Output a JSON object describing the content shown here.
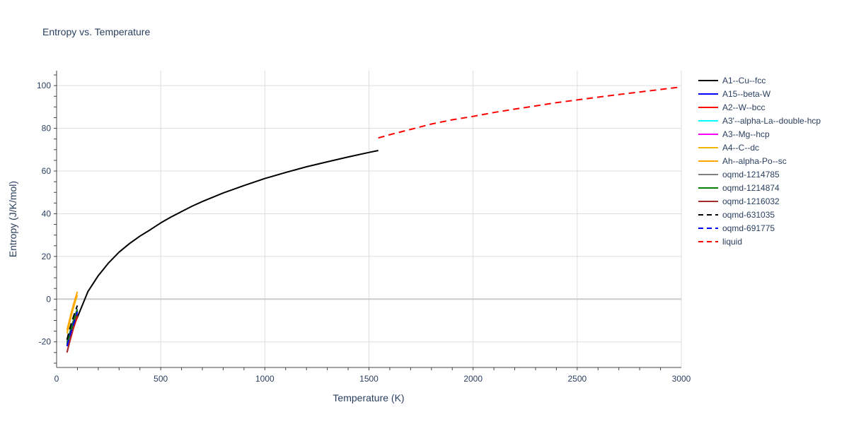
{
  "chart_data": {
    "type": "line",
    "title": "Entropy vs. Temperature",
    "xlabel": "Temperature (K)",
    "ylabel": "Entropy (J/K/mol)",
    "xlim": [
      0,
      3000
    ],
    "ylim": [
      -32,
      107
    ],
    "x_ticks": [
      0,
      500,
      1000,
      1500,
      2000,
      2500,
      3000
    ],
    "y_ticks": [
      -20,
      0,
      20,
      40,
      60,
      80,
      100
    ],
    "grid": true,
    "legend_position": "right",
    "series": [
      {
        "name": "A1--Cu--fcc",
        "color": "#000000",
        "dash": "solid",
        "x": [
          50,
          60,
          80,
          100,
          150,
          200,
          250,
          300,
          350,
          400,
          450,
          500,
          550,
          600,
          650,
          700,
          800,
          900,
          1000,
          1100,
          1200,
          1300,
          1400,
          1500,
          1545
        ],
        "y": [
          -21,
          -18,
          -13,
          -8.5,
          3.5,
          11,
          17,
          22,
          26,
          29.5,
          32.5,
          35.7,
          38.5,
          41,
          43.5,
          45.7,
          49.7,
          53.2,
          56.5,
          59.3,
          62,
          64.3,
          66.6,
          68.7,
          69.6
        ]
      },
      {
        "name": "A15--beta-W",
        "color": "#0000ff",
        "dash": "solid",
        "x": [
          50,
          60,
          70,
          80,
          90,
          100
        ],
        "y": [
          -22,
          -18,
          -14.5,
          -11,
          -8,
          -5.5
        ]
      },
      {
        "name": "A2--W--bcc",
        "color": "#ff0000",
        "dash": "solid",
        "x": [
          50,
          60,
          70,
          80,
          90,
          100
        ],
        "y": [
          -25,
          -21,
          -17.5,
          -14,
          -11,
          -8
        ]
      },
      {
        "name": "A3'--alpha-La--double-hcp",
        "color": "#00ffff",
        "dash": "solid",
        "x": [
          50,
          60,
          70,
          80,
          90,
          100
        ],
        "y": [
          -20,
          -16.5,
          -13,
          -10,
          -7,
          -4.5
        ]
      },
      {
        "name": "A3--Mg--hcp",
        "color": "#ff00ff",
        "dash": "solid",
        "x": [
          50,
          60,
          70,
          80,
          90,
          100
        ],
        "y": [
          -21,
          -17.5,
          -14,
          -11,
          -8,
          -5.5
        ]
      },
      {
        "name": "A4--C--dc",
        "color": "#f5b400",
        "dash": "solid",
        "x": [
          50,
          60,
          70,
          80,
          90,
          100
        ],
        "y": [
          -16,
          -12,
          -8,
          -4.5,
          -1,
          2
        ]
      },
      {
        "name": "Ah--alpha-Po--sc",
        "color": "#ffa500",
        "dash": "solid",
        "x": [
          50,
          60,
          70,
          80,
          90,
          100
        ],
        "y": [
          -14.5,
          -10.5,
          -6.5,
          -3,
          0.5,
          3.5
        ]
      },
      {
        "name": "oqmd-1214785",
        "color": "#808080",
        "dash": "solid",
        "x": [
          50,
          60,
          70,
          80,
          90,
          100
        ],
        "y": [
          -20,
          -16.5,
          -13,
          -10,
          -7,
          -4.5
        ]
      },
      {
        "name": "oqmd-1214874",
        "color": "#008000",
        "dash": "solid",
        "x": [
          50,
          60,
          70,
          80,
          90,
          100
        ],
        "y": [
          -21,
          -17.5,
          -14,
          -11,
          -8,
          -5
        ]
      },
      {
        "name": "oqmd-1216032",
        "color": "#a52a2a",
        "dash": "solid",
        "x": [
          50,
          60,
          70,
          80,
          90,
          100
        ],
        "y": [
          -25,
          -21,
          -17,
          -13.5,
          -10,
          -7
        ]
      },
      {
        "name": "oqmd-631035",
        "color": "#000000",
        "dash": "dash",
        "x": [
          50,
          60,
          70,
          80,
          90,
          100
        ],
        "y": [
          -19,
          -15,
          -11.5,
          -8.5,
          -5.5,
          -3
        ]
      },
      {
        "name": "oqmd-691775",
        "color": "#0000ff",
        "dash": "dash",
        "x": [
          50,
          60,
          70,
          80,
          90,
          100
        ],
        "y": [
          -22,
          -18.5,
          -15,
          -12,
          -9,
          -6
        ]
      },
      {
        "name": "liquid",
        "color": "#ff0000",
        "dash": "dash",
        "x": [
          1545,
          1600,
          1700,
          1800,
          1900,
          2000,
          2100,
          2200,
          2300,
          2400,
          2500,
          2600,
          2700,
          2800,
          2900,
          3000
        ],
        "y": [
          75.5,
          77,
          79.5,
          82,
          84,
          85.6,
          87.4,
          89,
          90.5,
          92,
          93.3,
          94.6,
          95.8,
          97,
          98.2,
          99.4
        ]
      }
    ]
  }
}
